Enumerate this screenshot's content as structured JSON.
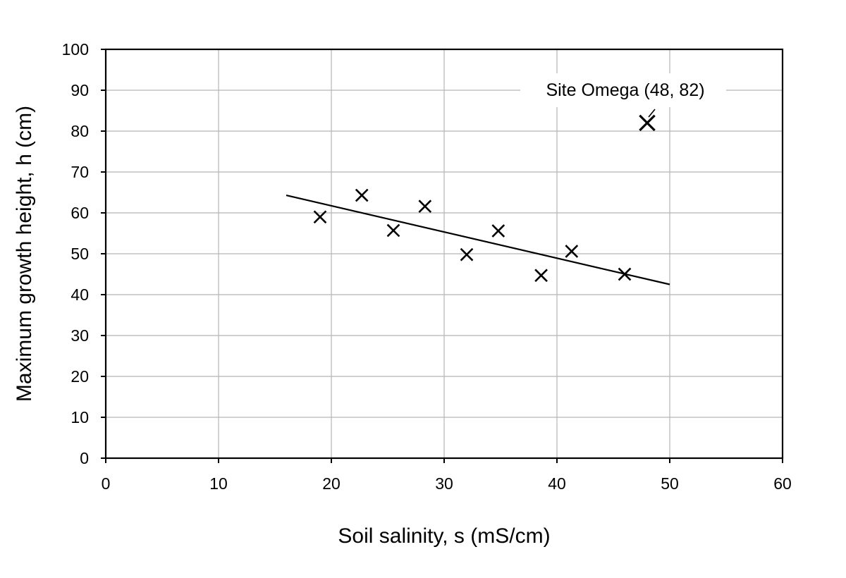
{
  "chart_data": {
    "type": "scatter",
    "xlabel": "Soil salinity, s (mS/cm)",
    "ylabel": "Maximum growth height, h (cm)",
    "xlim": [
      0,
      60
    ],
    "ylim": [
      0,
      100
    ],
    "xticks": [
      0,
      10,
      20,
      30,
      40,
      50,
      60
    ],
    "yticks": [
      0,
      10,
      20,
      30,
      40,
      50,
      60,
      70,
      80,
      90,
      100
    ],
    "grid": true,
    "series": [
      {
        "marker": "x",
        "points": [
          {
            "x": 19.0,
            "y": 59.0
          },
          {
            "x": 22.7,
            "y": 64.3
          },
          {
            "x": 25.5,
            "y": 55.7
          },
          {
            "x": 28.3,
            "y": 61.6
          },
          {
            "x": 32.0,
            "y": 49.8
          },
          {
            "x": 34.8,
            "y": 55.6
          },
          {
            "x": 38.6,
            "y": 44.7
          },
          {
            "x": 41.3,
            "y": 50.6
          },
          {
            "x": 46.0,
            "y": 45.0
          }
        ]
      }
    ],
    "outlier": {
      "x": 48,
      "y": 82
    },
    "trendline": {
      "x": [
        16,
        50
      ],
      "y": [
        64.3,
        42.5
      ]
    },
    "annotations": [
      {
        "text": "Site Omega (48, 82)",
        "x": 48,
        "y": 82
      }
    ]
  }
}
